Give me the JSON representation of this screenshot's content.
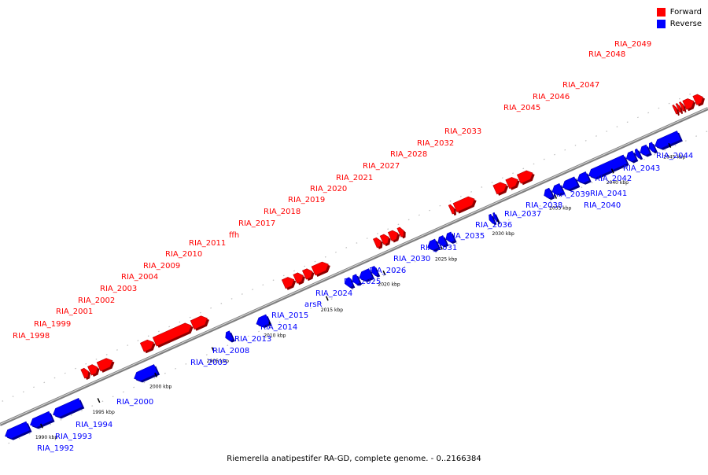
{
  "legend": {
    "forward_label": "Forward",
    "reverse_label": "Reverse",
    "forward_color": "#ff0000",
    "reverse_color": "#0000ff"
  },
  "caption": "Riemerella anatipestifer RA-GD, complete genome. - 0..2166384",
  "colors": {
    "backbone": "#808080",
    "forward": "#ff0000",
    "reverse": "#0000ff"
  },
  "genome": {
    "view_start_kbp": 1987,
    "view_end_kbp": 2049
  },
  "scale_ticks": [
    {
      "kbp": 1990,
      "label": "1990 kbp"
    },
    {
      "kbp": 1995,
      "label": "1995 kbp"
    },
    {
      "kbp": 2000,
      "label": "2000 kbp"
    },
    {
      "kbp": 2005,
      "label": "2005 kbp"
    },
    {
      "kbp": 2010,
      "label": "2010 kbp"
    },
    {
      "kbp": 2015,
      "label": "2015 kbp"
    },
    {
      "kbp": 2020,
      "label": "2020 kbp"
    },
    {
      "kbp": 2025,
      "label": "2025 kbp"
    },
    {
      "kbp": 2030,
      "label": "2030 kbp"
    },
    {
      "kbp": 2035,
      "label": "2035 kbp"
    },
    {
      "kbp": 2040,
      "label": "2040 kbp"
    },
    {
      "kbp": 2045,
      "label": "2045 kbp"
    }
  ],
  "genes": [
    {
      "name": "RIA_1992",
      "strand": "reverse",
      "start": 1987.0,
      "end": 1989.0
    },
    {
      "name": "RIA_1993",
      "strand": "reverse",
      "start": 1989.2,
      "end": 1991.0
    },
    {
      "name": "RIA_1994",
      "strand": "reverse",
      "start": 1991.2,
      "end": 1993.6
    },
    {
      "name": "RIA_1998",
      "strand": "forward",
      "start": 1994.7,
      "end": 1995.2
    },
    {
      "name": "RIA_1999",
      "strand": "forward",
      "start": 1995.3,
      "end": 1996.0
    },
    {
      "name": "RIA_2000",
      "strand": "reverse",
      "start": 1998.3,
      "end": 2000.2
    },
    {
      "name": "RIA_2001",
      "strand": "forward",
      "start": 1996.1,
      "end": 1997.3
    },
    {
      "name": "RIA_2002",
      "strand": "forward",
      "start": 1999.9,
      "end": 2000.9
    },
    {
      "name": "RIA_2003",
      "strand": "forward",
      "start": 2001.0,
      "end": 2004.2
    },
    {
      "name": "RIA_2004",
      "strand": "forward",
      "start": 2004.3,
      "end": 2005.6
    },
    {
      "name": "RIA_2005",
      "strand": "reverse",
      "start": 2006.3,
      "end": 2006.8
    },
    {
      "name": "RIA_2008",
      "strand": "reverse",
      "start": 2009.0,
      "end": 2010.0
    },
    {
      "name": "RIA_2009",
      "strand": "forward",
      "start": 2012.3,
      "end": 2013.2
    },
    {
      "name": "RIA_2010",
      "strand": "forward",
      "start": 2013.3,
      "end": 2014.0
    },
    {
      "name": "RIA_2011",
      "strand": "forward",
      "start": 2014.1,
      "end": 2014.8
    },
    {
      "name": "ffh",
      "strand": "forward",
      "start": 2014.9,
      "end": 2016.2
    },
    {
      "name": "RIA_2013",
      "strand": "reverse",
      "start": 2016.8,
      "end": 2017.3
    },
    {
      "name": "RIA_2014",
      "strand": "reverse",
      "start": 2017.4,
      "end": 2017.9
    },
    {
      "name": "RIA_2015",
      "strand": "reverse",
      "start": 2018.0,
      "end": 2019.0
    },
    {
      "name": "arsR",
      "strand": "reverse",
      "start": 2019.1,
      "end": 2019.5
    },
    {
      "name": "RIA_2017",
      "strand": "forward",
      "start": 2020.3,
      "end": 2020.8
    },
    {
      "name": "RIA_2018",
      "strand": "forward",
      "start": 2020.9,
      "end": 2021.5
    },
    {
      "name": "RIA_2019",
      "strand": "forward",
      "start": 2021.6,
      "end": 2022.3
    },
    {
      "name": "RIA_2020",
      "strand": "forward",
      "start": 2022.4,
      "end": 2022.8
    },
    {
      "name": "RIA_2024",
      "strand": "reverse",
      "start": 2024.0,
      "end": 2024.8
    },
    {
      "name": "RIA_2025",
      "strand": "reverse",
      "start": 2024.9,
      "end": 2025.5
    },
    {
      "name": "RIA_2026",
      "strand": "reverse",
      "start": 2025.6,
      "end": 2026.2
    },
    {
      "name": "RIA_2021",
      "strand": "forward",
      "start": 2026.9,
      "end": 2027.2
    },
    {
      "name": "RIA_2027",
      "strand": "forward",
      "start": 2027.3,
      "end": 2029.0
    },
    {
      "name": "RIA_2030",
      "strand": "reverse",
      "start": 2029.4,
      "end": 2029.7
    },
    {
      "name": "RIA_2031",
      "strand": "reverse",
      "start": 2029.8,
      "end": 2030.0
    },
    {
      "name": "RIA_2028",
      "strand": "forward",
      "start": 2030.8,
      "end": 2031.8
    },
    {
      "name": "RIA_2032",
      "strand": "forward",
      "start": 2031.9,
      "end": 2032.8
    },
    {
      "name": "RIA_2033",
      "strand": "forward",
      "start": 2032.9,
      "end": 2034.1
    },
    {
      "name": "RIA_2035",
      "strand": "reverse",
      "start": 2034.2,
      "end": 2034.8
    },
    {
      "name": "RIA_2036",
      "strand": "reverse",
      "start": 2034.9,
      "end": 2035.7
    },
    {
      "name": "RIA_2037",
      "strand": "reverse",
      "start": 2035.8,
      "end": 2037.0
    },
    {
      "name": "RIA_2038",
      "strand": "reverse",
      "start": 2037.1,
      "end": 2038.0
    },
    {
      "name": "RIA_2039",
      "strand": "reverse",
      "start": 2038.1,
      "end": 2041.3
    },
    {
      "name": "RIA_2040",
      "strand": "reverse",
      "start": 2041.4,
      "end": 2042.1
    },
    {
      "name": "RIA_2041",
      "strand": "reverse",
      "start": 2042.2,
      "end": 2042.5
    },
    {
      "name": "RIA_2042",
      "strand": "reverse",
      "start": 2042.6,
      "end": 2043.3
    },
    {
      "name": "RIA_2043",
      "strand": "reverse",
      "start": 2043.4,
      "end": 2043.8
    },
    {
      "name": "RIA_2044",
      "strand": "reverse",
      "start": 2043.9,
      "end": 2046.0
    },
    {
      "name": "RIA_2045",
      "strand": "forward",
      "start": 2046.5,
      "end": 2046.7
    },
    {
      "name": "RIA_2046",
      "strand": "forward",
      "start": 2046.8,
      "end": 2047.0
    },
    {
      "name": "RIA_2047",
      "strand": "forward",
      "start": 2047.1,
      "end": 2047.3
    },
    {
      "name": "RIA_2048",
      "strand": "forward",
      "start": 2047.4,
      "end": 2048.2
    },
    {
      "name": "RIA_2049",
      "strand": "forward",
      "start": 2048.3,
      "end": 2049.0
    }
  ]
}
